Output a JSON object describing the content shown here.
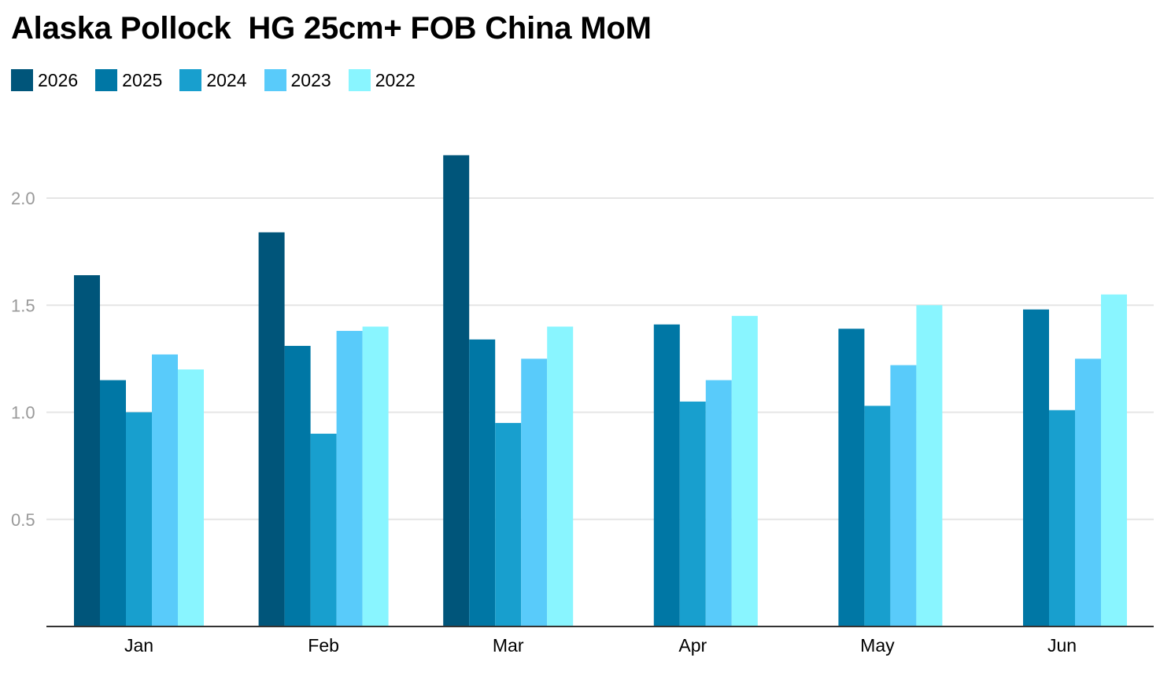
{
  "chart_data": {
    "type": "bar",
    "title": "Alaska Pollock  HG 25cm+ FOB China MoM",
    "categories": [
      "Jan",
      "Feb",
      "Mar",
      "Apr",
      "May",
      "Jun"
    ],
    "series": [
      {
        "name": "2026",
        "color": "#00557a",
        "values": [
          1.64,
          1.84,
          2.2,
          null,
          null,
          null
        ]
      },
      {
        "name": "2025",
        "color": "#0077a5",
        "values": [
          1.15,
          1.31,
          1.34,
          1.41,
          1.39,
          1.48
        ]
      },
      {
        "name": "2024",
        "color": "#189fce",
        "values": [
          1.0,
          0.9,
          0.95,
          1.05,
          1.03,
          1.01
        ]
      },
      {
        "name": "2023",
        "color": "#59cbfa",
        "values": [
          1.27,
          1.38,
          1.25,
          1.15,
          1.22,
          1.25
        ]
      },
      {
        "name": "2022",
        "color": "#89f5ff",
        "values": [
          1.2,
          1.4,
          1.4,
          1.45,
          1.5,
          1.55
        ]
      }
    ],
    "ylim": [
      0,
      2.4
    ],
    "yticks": [
      0.5,
      1.0,
      1.5,
      2.0
    ],
    "ytick_labels": [
      "0.5",
      "1.0",
      "1.5",
      "2.0"
    ],
    "grid": true,
    "legend_position": "top-left",
    "xlabel": "",
    "ylabel": ""
  }
}
